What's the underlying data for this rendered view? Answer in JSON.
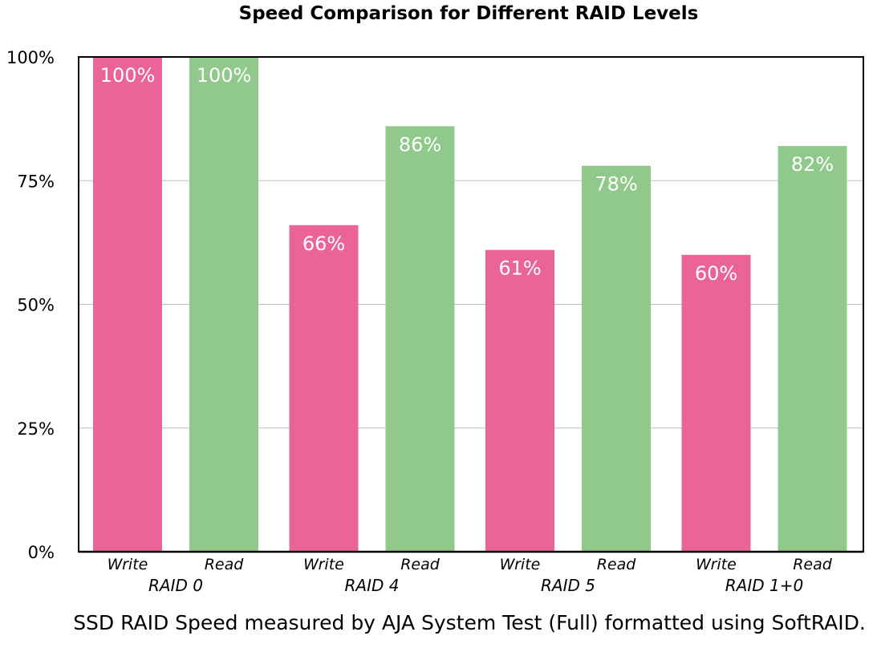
{
  "chart_data": {
    "type": "bar",
    "title": "Speed Comparison for Different RAID Levels",
    "caption": "SSD RAID Speed measured by AJA System Test (Full) formatted using SoftRAID.",
    "groups": [
      "RAID 0",
      "RAID 4",
      "RAID 5",
      "RAID 1+0"
    ],
    "series": [
      {
        "name": "Write",
        "color": "#ea6498",
        "values": [
          100,
          66,
          61,
          60
        ],
        "labels": [
          "100%",
          "66%",
          "61%",
          "60%"
        ]
      },
      {
        "name": "Read",
        "color": "#90c98b",
        "values": [
          100,
          86,
          78,
          82
        ],
        "labels": [
          "100%",
          "86%",
          "78%",
          "82%"
        ]
      }
    ],
    "yticks": [
      {
        "value": 0,
        "label": "0%"
      },
      {
        "value": 25,
        "label": "25%"
      },
      {
        "value": 50,
        "label": "50%"
      },
      {
        "value": 75,
        "label": "75%"
      },
      {
        "value": 100,
        "label": "100%"
      }
    ],
    "ylim": [
      0,
      100
    ],
    "grid": true,
    "legend": "none"
  }
}
